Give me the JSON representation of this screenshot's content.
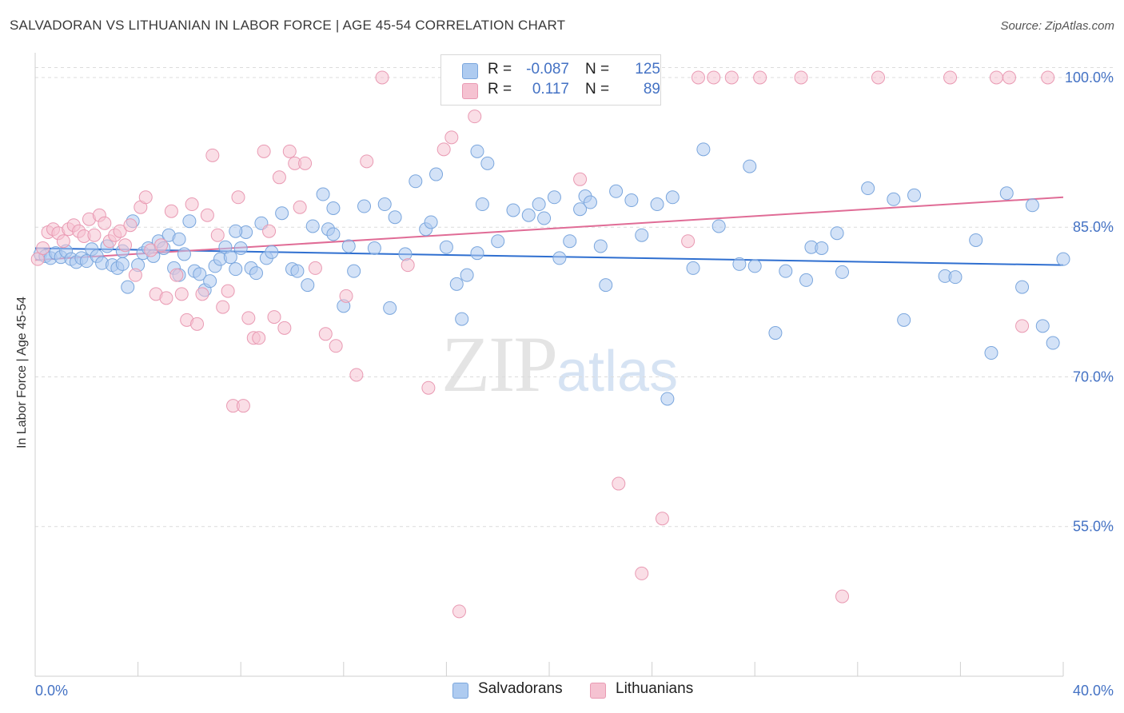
{
  "title": "SALVADORAN VS LITHUANIAN IN LABOR FORCE | AGE 45-54 CORRELATION CHART",
  "source": "Source: ZipAtlas.com",
  "watermark": {
    "zip": "ZIP",
    "atlas": "atlas"
  },
  "legend": {
    "rows": [
      {
        "r_label": "R =",
        "r_value": "-0.087",
        "n_label": "N =",
        "n_value": "125"
      },
      {
        "r_label": "R =",
        "r_value": "0.117",
        "n_label": "N =",
        "n_value": "89"
      }
    ]
  },
  "bottom_legend": [
    "Salvadorans",
    "Lithuanians"
  ],
  "colors": {
    "blue_fill": "#aecbf0",
    "blue_stroke": "#7aa6dd",
    "blue_line": "#2f6fd0",
    "pink_fill": "#f5c2d1",
    "pink_stroke": "#e99ab3",
    "pink_line": "#e06c96",
    "label_blue": "#4472c4",
    "grid": "#dcdcdc"
  },
  "chart_data": {
    "type": "scatter",
    "title": "SALVADORAN VS LITHUANIAN IN LABOR FORCE | AGE 45-54 CORRELATION CHART",
    "xlabel": "",
    "ylabel": "In Labor Force | Age 45-54",
    "xlim": [
      0,
      40
    ],
    "ylim": [
      40,
      102
    ],
    "x_tick_labels": [
      "0.0%",
      "40.0%"
    ],
    "y_ticks": [
      55,
      70,
      85,
      100
    ],
    "y_tick_labels": [
      "55.0%",
      "70.0%",
      "85.0%",
      "100.0%"
    ],
    "grid": true,
    "legend_position": "top-center",
    "series": [
      {
        "name": "Salvadorans",
        "trend": {
          "x": [
            0,
            40
          ],
          "y": [
            82.9,
            81.2
          ]
        },
        "points": [
          [
            0.2,
            82.3
          ],
          [
            0.4,
            82.1
          ],
          [
            0.6,
            81.9
          ],
          [
            0.8,
            82.4
          ],
          [
            1.0,
            82.0
          ],
          [
            1.2,
            82.6
          ],
          [
            1.4,
            81.8
          ],
          [
            1.6,
            81.5
          ],
          [
            1.8,
            81.9
          ],
          [
            2.0,
            81.6
          ],
          [
            2.2,
            82.8
          ],
          [
            2.4,
            82.1
          ],
          [
            2.6,
            81.4
          ],
          [
            2.8,
            83.1
          ],
          [
            3.0,
            81.2
          ],
          [
            3.2,
            80.9
          ],
          [
            3.4,
            81.3
          ],
          [
            3.6,
            79.0
          ],
          [
            3.8,
            85.6
          ],
          [
            4.0,
            81.2
          ],
          [
            4.2,
            82.4
          ],
          [
            4.4,
            82.9
          ],
          [
            4.6,
            82.1
          ],
          [
            4.8,
            83.6
          ],
          [
            5.0,
            82.9
          ],
          [
            5.2,
            84.2
          ],
          [
            5.4,
            80.9
          ],
          [
            5.6,
            80.2
          ],
          [
            5.8,
            82.3
          ],
          [
            6.0,
            85.6
          ],
          [
            6.2,
            80.6
          ],
          [
            6.4,
            80.3
          ],
          [
            6.6,
            78.7
          ],
          [
            6.8,
            79.6
          ],
          [
            7.0,
            81.1
          ],
          [
            7.2,
            81.8
          ],
          [
            7.4,
            83.0
          ],
          [
            7.6,
            82.0
          ],
          [
            7.8,
            80.8
          ],
          [
            8.0,
            82.9
          ],
          [
            8.2,
            84.5
          ],
          [
            8.4,
            80.9
          ],
          [
            8.6,
            80.4
          ],
          [
            8.8,
            85.4
          ],
          [
            9.0,
            81.9
          ],
          [
            9.2,
            82.5
          ],
          [
            9.6,
            86.4
          ],
          [
            10.0,
            80.8
          ],
          [
            10.2,
            80.6
          ],
          [
            10.6,
            79.2
          ],
          [
            10.8,
            85.1
          ],
          [
            11.2,
            88.3
          ],
          [
            11.4,
            84.8
          ],
          [
            11.6,
            84.3
          ],
          [
            12.0,
            77.1
          ],
          [
            12.2,
            83.1
          ],
          [
            12.4,
            80.6
          ],
          [
            12.8,
            87.1
          ],
          [
            13.2,
            82.9
          ],
          [
            13.6,
            87.3
          ],
          [
            13.8,
            76.9
          ],
          [
            14.0,
            86.0
          ],
          [
            14.4,
            82.3
          ],
          [
            14.8,
            89.6
          ],
          [
            15.2,
            84.8
          ],
          [
            15.4,
            85.5
          ],
          [
            15.6,
            90.3
          ],
          [
            16.0,
            83.0
          ],
          [
            16.4,
            79.3
          ],
          [
            16.6,
            75.8
          ],
          [
            16.8,
            80.2
          ],
          [
            17.2,
            92.6
          ],
          [
            17.4,
            87.3
          ],
          [
            17.6,
            91.4
          ],
          [
            18.0,
            83.6
          ],
          [
            18.6,
            86.7
          ],
          [
            19.2,
            86.2
          ],
          [
            19.6,
            87.3
          ],
          [
            19.8,
            85.9
          ],
          [
            20.2,
            88.0
          ],
          [
            20.4,
            81.9
          ],
          [
            20.8,
            83.6
          ],
          [
            21.2,
            86.8
          ],
          [
            21.4,
            88.1
          ],
          [
            21.6,
            87.5
          ],
          [
            22.0,
            83.1
          ],
          [
            22.2,
            79.2
          ],
          [
            22.6,
            88.6
          ],
          [
            23.2,
            87.7
          ],
          [
            23.6,
            84.2
          ],
          [
            24.2,
            87.3
          ],
          [
            24.6,
            67.8
          ],
          [
            24.8,
            88.0
          ],
          [
            25.6,
            80.9
          ],
          [
            26.0,
            92.8
          ],
          [
            26.6,
            85.1
          ],
          [
            27.4,
            81.3
          ],
          [
            27.8,
            91.1
          ],
          [
            28.0,
            81.1
          ],
          [
            28.8,
            74.4
          ],
          [
            29.2,
            80.6
          ],
          [
            30.0,
            79.7
          ],
          [
            30.2,
            83.0
          ],
          [
            30.6,
            82.9
          ],
          [
            31.2,
            84.4
          ],
          [
            31.4,
            80.5
          ],
          [
            32.4,
            88.9
          ],
          [
            33.4,
            87.8
          ],
          [
            33.8,
            75.7
          ],
          [
            35.4,
            80.1
          ],
          [
            35.8,
            80.0
          ],
          [
            36.6,
            83.7
          ],
          [
            37.2,
            72.4
          ],
          [
            37.8,
            88.4
          ],
          [
            38.4,
            79.0
          ],
          [
            38.8,
            87.2
          ],
          [
            39.2,
            75.1
          ],
          [
            40.0,
            81.8
          ],
          [
            39.6,
            73.4
          ],
          [
            34.2,
            88.2
          ],
          [
            3.4,
            82.6
          ],
          [
            5.6,
            83.8
          ],
          [
            7.8,
            84.6
          ],
          [
            11.6,
            86.9
          ],
          [
            17.2,
            82.4
          ]
        ]
      },
      {
        "name": "Lithuanians",
        "trend": {
          "x": [
            0,
            40
          ],
          "y": [
            81.7,
            88.0
          ]
        },
        "points": [
          [
            0.1,
            81.8
          ],
          [
            0.3,
            82.9
          ],
          [
            0.5,
            84.5
          ],
          [
            0.7,
            84.8
          ],
          [
            0.9,
            84.4
          ],
          [
            1.1,
            83.6
          ],
          [
            1.3,
            84.8
          ],
          [
            1.5,
            85.2
          ],
          [
            1.7,
            84.6
          ],
          [
            1.9,
            84.1
          ],
          [
            2.1,
            85.8
          ],
          [
            2.3,
            84.2
          ],
          [
            2.5,
            86.2
          ],
          [
            2.7,
            85.4
          ],
          [
            2.9,
            83.6
          ],
          [
            3.1,
            84.2
          ],
          [
            3.3,
            84.6
          ],
          [
            3.5,
            83.2
          ],
          [
            3.7,
            85.2
          ],
          [
            3.9,
            80.2
          ],
          [
            4.1,
            87.0
          ],
          [
            4.3,
            88.0
          ],
          [
            4.5,
            82.7
          ],
          [
            4.7,
            78.3
          ],
          [
            4.9,
            83.2
          ],
          [
            5.1,
            77.9
          ],
          [
            5.3,
            86.6
          ],
          [
            5.5,
            80.2
          ],
          [
            5.7,
            78.3
          ],
          [
            5.9,
            75.7
          ],
          [
            6.1,
            87.3
          ],
          [
            6.3,
            75.3
          ],
          [
            6.5,
            78.3
          ],
          [
            6.7,
            86.2
          ],
          [
            6.9,
            92.2
          ],
          [
            7.1,
            84.2
          ],
          [
            7.3,
            77.0
          ],
          [
            7.5,
            78.6
          ],
          [
            7.7,
            67.1
          ],
          [
            7.9,
            88.0
          ],
          [
            8.1,
            67.1
          ],
          [
            8.3,
            75.9
          ],
          [
            8.5,
            73.9
          ],
          [
            8.7,
            73.9
          ],
          [
            8.9,
            92.6
          ],
          [
            9.1,
            84.6
          ],
          [
            9.3,
            76.0
          ],
          [
            9.5,
            90.0
          ],
          [
            9.7,
            74.9
          ],
          [
            9.9,
            92.6
          ],
          [
            10.1,
            91.4
          ],
          [
            10.3,
            87.0
          ],
          [
            10.5,
            91.4
          ],
          [
            10.9,
            80.9
          ],
          [
            11.3,
            74.3
          ],
          [
            11.7,
            73.1
          ],
          [
            12.1,
            78.1
          ],
          [
            12.5,
            70.2
          ],
          [
            12.9,
            91.6
          ],
          [
            13.5,
            100.0
          ],
          [
            14.5,
            81.2
          ],
          [
            15.3,
            68.9
          ],
          [
            15.9,
            92.8
          ],
          [
            16.2,
            94.0
          ],
          [
            16.5,
            46.5
          ],
          [
            17.1,
            96.1
          ],
          [
            17.5,
            100.0
          ],
          [
            18.5,
            100.0
          ],
          [
            19.5,
            100.0
          ],
          [
            20.6,
            100.0
          ],
          [
            21.2,
            89.8
          ],
          [
            22.3,
            100.0
          ],
          [
            22.7,
            59.3
          ],
          [
            23.1,
            100.0
          ],
          [
            23.6,
            50.3
          ],
          [
            24.4,
            55.8
          ],
          [
            25.4,
            83.6
          ],
          [
            25.8,
            100.0
          ],
          [
            26.4,
            100.0
          ],
          [
            27.1,
            100.0
          ],
          [
            28.2,
            100.0
          ],
          [
            29.8,
            100.0
          ],
          [
            31.4,
            48.0
          ],
          [
            32.8,
            100.0
          ],
          [
            35.6,
            100.0
          ],
          [
            37.4,
            100.0
          ],
          [
            37.9,
            100.0
          ],
          [
            38.4,
            75.1
          ],
          [
            39.4,
            100.0
          ]
        ]
      }
    ]
  }
}
